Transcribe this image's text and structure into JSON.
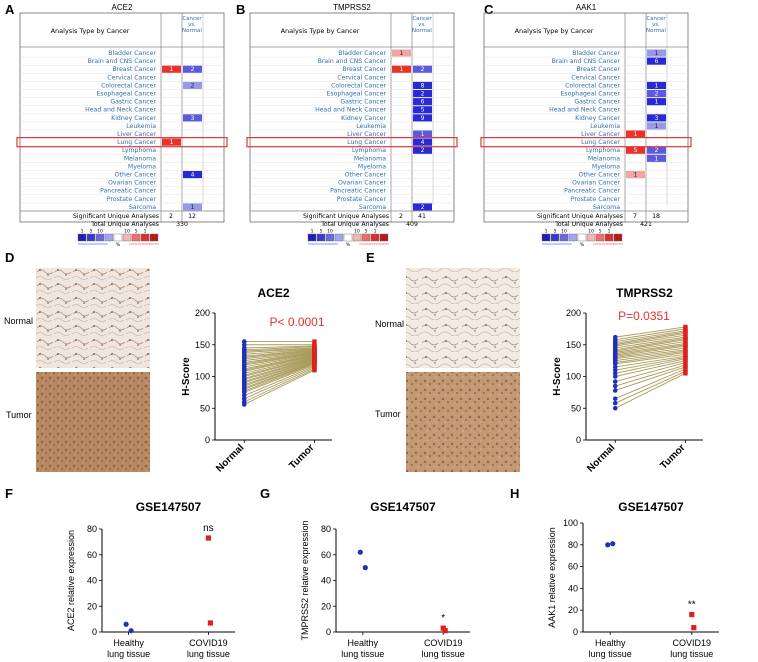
{
  "figure": {
    "panel_labels": {
      "A": "A",
      "B": "B",
      "C": "C",
      "D": "D",
      "E": "E",
      "F": "F",
      "G": "G",
      "H": "H"
    }
  },
  "oncomine": {
    "header_type": "Analysis Type by Cancer",
    "header_cvn": [
      "Cancer",
      "vs.",
      "Normal"
    ],
    "cancers": [
      "Bladder Cancer",
      "Brain and CNS Cancer",
      "Breast Cancer",
      "Cervical Cancer",
      "Colorectal Cancer",
      "Esophageal Cancer",
      "Gastric Cancer",
      "Head and Neck Cancer",
      "Kidney Cancer",
      "Leukemia",
      "Liver Cancer",
      "Lung Cancer",
      "Lymphoma",
      "Melanoma",
      "Myeloma",
      "Other Cancer",
      "Ovarian Cancer",
      "Pancreatic Cancer",
      "Prostate Cancer",
      "Sarcoma"
    ],
    "footer_sig": "Significant Unique Analyses",
    "footer_total": "Total Unique Analyses",
    "legend_numbers": [
      "1",
      "5",
      "10",
      "10",
      "5",
      "1"
    ],
    "legend_pct": "%",
    "colors": {
      "up": "#e8332a",
      "up_light": "#f4a4a4",
      "down": "#2929d6",
      "down_mid": "#5b5be0",
      "down_light": "#9999e8",
      "highlight": "#e03a3a"
    },
    "panels": [
      {
        "gene": "ACE2",
        "sig_up": "2",
        "sig_down": "12",
        "total": "330",
        "cells": [
          {
            "row": 2,
            "col": "up",
            "value": "1",
            "shade": "up"
          },
          {
            "row": 2,
            "col": "down",
            "value": "2",
            "shade": "down_mid"
          },
          {
            "row": 4,
            "col": "down",
            "value": "2",
            "shade": "down_light"
          },
          {
            "row": 8,
            "col": "down",
            "value": "3",
            "shade": "down_mid"
          },
          {
            "row": 11,
            "col": "up",
            "value": "1",
            "shade": "up"
          },
          {
            "row": 15,
            "col": "down",
            "value": "4",
            "shade": "down"
          },
          {
            "row": 19,
            "col": "down",
            "value": "1",
            "shade": "down_light"
          }
        ]
      },
      {
        "gene": "TMPRSS2",
        "sig_up": "2",
        "sig_down": "41",
        "total": "409",
        "cells": [
          {
            "row": 0,
            "col": "up",
            "value": "1",
            "shade": "up_light"
          },
          {
            "row": 2,
            "col": "up",
            "value": "1",
            "shade": "up"
          },
          {
            "row": 2,
            "col": "down",
            "value": "2",
            "shade": "down_mid"
          },
          {
            "row": 4,
            "col": "down",
            "value": "8",
            "shade": "down"
          },
          {
            "row": 5,
            "col": "down",
            "value": "2",
            "shade": "down"
          },
          {
            "row": 6,
            "col": "down",
            "value": "6",
            "shade": "down"
          },
          {
            "row": 7,
            "col": "down",
            "value": "5",
            "shade": "down"
          },
          {
            "row": 8,
            "col": "down",
            "value": "9",
            "shade": "down"
          },
          {
            "row": 10,
            "col": "down",
            "value": "1",
            "shade": "down_mid"
          },
          {
            "row": 11,
            "col": "down",
            "value": "4",
            "shade": "down"
          },
          {
            "row": 12,
            "col": "down",
            "value": "2",
            "shade": "down"
          },
          {
            "row": 19,
            "col": "down",
            "value": "2",
            "shade": "down"
          }
        ]
      },
      {
        "gene": "AAK1",
        "sig_up": "7",
        "sig_down": "18",
        "total": "421",
        "cells": [
          {
            "row": 0,
            "col": "down",
            "value": "1",
            "shade": "down_light"
          },
          {
            "row": 1,
            "col": "down",
            "value": "6",
            "shade": "down"
          },
          {
            "row": 4,
            "col": "down",
            "value": "1",
            "shade": "down"
          },
          {
            "row": 5,
            "col": "down",
            "value": "2",
            "shade": "down_mid"
          },
          {
            "row": 6,
            "col": "down",
            "value": "1",
            "shade": "down"
          },
          {
            "row": 8,
            "col": "down",
            "value": "3",
            "shade": "down"
          },
          {
            "row": 9,
            "col": "down",
            "value": "1",
            "shade": "down_light"
          },
          {
            "row": 10,
            "col": "up",
            "value": "1",
            "shade": "up"
          },
          {
            "row": 12,
            "col": "up",
            "value": "5",
            "shade": "up"
          },
          {
            "row": 12,
            "col": "down",
            "value": "2",
            "shade": "down_mid"
          },
          {
            "row": 13,
            "col": "down",
            "value": "1",
            "shade": "down_mid"
          },
          {
            "row": 15,
            "col": "up",
            "value": "1",
            "shade": "up_light"
          }
        ]
      }
    ]
  },
  "ihc": {
    "normal_label": "Normal",
    "tumor_label": "Tumor"
  },
  "chart_data": [
    {
      "type": "scatter",
      "subtype": "paired",
      "panel": "D",
      "title": "ACE2",
      "annotation": "P< 0.0001",
      "ylabel": "H-Score",
      "categories": [
        "Normal",
        "Tumor"
      ],
      "ylim": [
        0,
        200
      ],
      "yticks": [
        "0",
        "50",
        "100",
        "150",
        "200"
      ],
      "series": [
        {
          "name": "Normal",
          "values": [
            155,
            150,
            145,
            142,
            140,
            138,
            135,
            132,
            130,
            128,
            125,
            122,
            120,
            118,
            115,
            112,
            110,
            108,
            105,
            102,
            100,
            97,
            95,
            92,
            90,
            87,
            85,
            82,
            80,
            77,
            75,
            70,
            65,
            60,
            56
          ]
        },
        {
          "name": "Tumor",
          "values": [
            155,
            150,
            148,
            147,
            145,
            144,
            143,
            142,
            141,
            140,
            139,
            138,
            137,
            136,
            135,
            134,
            133,
            132,
            131,
            130,
            129,
            128,
            127,
            126,
            125,
            124,
            123,
            122,
            121,
            120,
            118,
            116,
            114,
            112,
            110
          ]
        }
      ],
      "colors": [
        "#1f2fbf",
        "#e02020"
      ]
    },
    {
      "type": "scatter",
      "subtype": "paired",
      "panel": "E",
      "title": "TMPRSS2",
      "annotation": "P=0.0351",
      "ylabel": "H-Score",
      "categories": [
        "Normal",
        "Tumor"
      ],
      "ylim": [
        0,
        200
      ],
      "yticks": [
        "0",
        "50",
        "100",
        "150",
        "200"
      ],
      "series": [
        {
          "name": "Normal",
          "values": [
            162,
            158,
            155,
            152,
            150,
            148,
            145,
            142,
            140,
            138,
            136,
            134,
            132,
            130,
            128,
            125,
            122,
            120,
            115,
            110,
            105,
            100,
            92,
            85,
            78,
            65,
            58,
            50
          ]
        },
        {
          "name": "Tumor",
          "values": [
            178,
            175,
            172,
            170,
            168,
            165,
            162,
            160,
            158,
            155,
            152,
            150,
            148,
            145,
            142,
            140,
            138,
            135,
            132,
            130,
            128,
            125,
            122,
            118,
            115,
            112,
            108,
            105
          ]
        }
      ],
      "colors": [
        "#1f2fbf",
        "#e02020"
      ]
    },
    {
      "type": "scatter",
      "panel": "F",
      "title": "GSE147507",
      "ylabel": "ACE2 relative expression",
      "categories": [
        "Healthy\nlung tissue",
        "COVID19\nlung tissue"
      ],
      "ylim": [
        0,
        80
      ],
      "yticks": [
        "0",
        "20",
        "40",
        "60",
        "80"
      ],
      "significance": "ns",
      "series": [
        {
          "name": "Healthy lung tissue",
          "values": [
            6,
            1
          ]
        },
        {
          "name": "COVID19 lung tissue",
          "values": [
            73,
            7
          ]
        }
      ],
      "colors": [
        "#1f2fbf",
        "#e02020"
      ]
    },
    {
      "type": "scatter",
      "panel": "G",
      "title": "GSE147507",
      "ylabel": "TMPRSS2 relative expression",
      "categories": [
        "Healthy\nlung tissue",
        "COVID19\nlung tissue"
      ],
      "ylim": [
        0,
        80
      ],
      "yticks": [
        "0",
        "20",
        "40",
        "60",
        "80"
      ],
      "significance": "*",
      "series": [
        {
          "name": "Healthy lung tissue",
          "values": [
            62,
            50
          ]
        },
        {
          "name": "COVID19 lung tissue",
          "values": [
            3,
            1
          ]
        }
      ],
      "colors": [
        "#1f2fbf",
        "#e02020"
      ]
    },
    {
      "type": "scatter",
      "panel": "H",
      "title": "GSE147507",
      "ylabel": "AAK1 relative expression",
      "categories": [
        "Healthy\nlung tissue",
        "COVID19\nlung tissue"
      ],
      "ylim": [
        0,
        100
      ],
      "yticks": [
        "0",
        "20",
        "40",
        "60",
        "80",
        "100"
      ],
      "significance": "**",
      "series": [
        {
          "name": "Healthy lung tissue",
          "values": [
            80,
            81
          ]
        },
        {
          "name": "COVID19 lung tissue",
          "values": [
            16,
            4
          ]
        }
      ],
      "colors": [
        "#1f2fbf",
        "#e02020"
      ]
    }
  ]
}
